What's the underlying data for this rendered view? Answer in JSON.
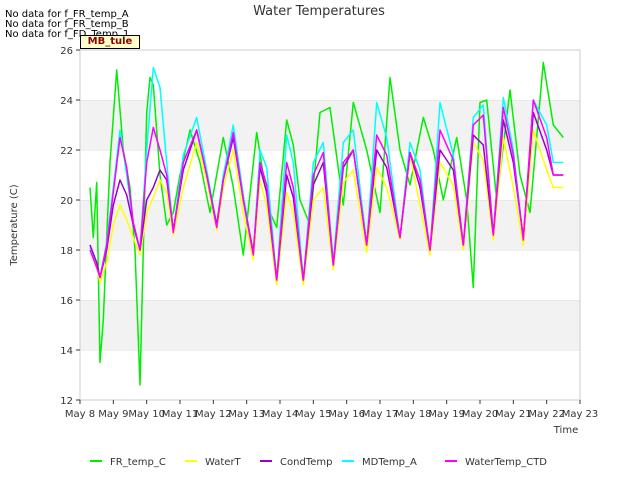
{
  "title": "Water Temperatures",
  "no_data_notes": [
    "No data for f_FR_temp_A",
    "No data for f_FR_temp_B",
    "No data for f_FD_Temp_1"
  ],
  "badge": "MB_tule",
  "chart_data": {
    "type": "line",
    "title": "Water Temperatures",
    "xlabel": "Time",
    "ylabel": "Temperature (C)",
    "xlim": [
      0,
      15
    ],
    "ylim": [
      12,
      26
    ],
    "x_tick_labels": [
      "May 8",
      "May 9",
      "May 10",
      "May 11",
      "May 12",
      "May 13",
      "May 14",
      "May 15",
      "May 16",
      "May 17",
      "May 18",
      "May 19",
      "May 20",
      "May 21",
      "May 22",
      "May 23"
    ],
    "y_ticks": [
      12,
      14,
      16,
      18,
      20,
      22,
      24,
      26
    ],
    "grid": "horizontal bands",
    "legend_position": "bottom",
    "series": [
      {
        "name": "FR_temp_C",
        "color": "#00ee00",
        "x": [
          0.3,
          0.4,
          0.5,
          0.6,
          0.7,
          0.8,
          0.9,
          1.0,
          1.1,
          1.3,
          1.5,
          1.65,
          1.8,
          1.9,
          2.0,
          2.1,
          2.2,
          2.4,
          2.6,
          2.8,
          3.0,
          3.3,
          3.6,
          3.9,
          4.3,
          4.6,
          4.9,
          5.3,
          5.5,
          5.7,
          5.9,
          6.2,
          6.4,
          6.6,
          6.9,
          7.2,
          7.5,
          7.9,
          8.2,
          8.6,
          9.0,
          9.3,
          9.6,
          9.9,
          10.3,
          10.6,
          10.9,
          11.3,
          11.6,
          11.8,
          12.0,
          12.2,
          12.5,
          12.9,
          13.2,
          13.5,
          13.9,
          14.2,
          14.5
        ],
        "y": [
          20.5,
          18.5,
          20.7,
          13.5,
          15.2,
          18.5,
          21.5,
          23.3,
          25.2,
          22.0,
          20.5,
          18.0,
          12.6,
          18.0,
          23.5,
          24.9,
          24.6,
          21.0,
          19.0,
          19.5,
          21.0,
          22.8,
          21.5,
          19.5,
          22.5,
          20.5,
          17.8,
          22.7,
          21.0,
          19.5,
          18.9,
          23.2,
          22.2,
          20.0,
          19.0,
          23.5,
          23.7,
          19.8,
          23.9,
          22.0,
          19.5,
          24.9,
          22.0,
          20.6,
          23.3,
          22.0,
          20.0,
          22.5,
          20.0,
          16.5,
          23.9,
          24.0,
          20.0,
          24.4,
          21.0,
          19.5,
          25.5,
          23.0,
          22.5
        ]
      },
      {
        "name": "WaterT",
        "color": "#ffff00",
        "x": [
          0.3,
          0.5,
          0.6,
          0.8,
          1.0,
          1.2,
          1.4,
          1.6,
          1.8,
          2.0,
          2.2,
          2.4,
          2.6,
          2.8,
          3.1,
          3.5,
          3.8,
          4.1,
          4.3,
          4.6,
          4.9,
          5.2,
          5.4,
          5.6,
          5.9,
          6.2,
          6.4,
          6.7,
          7.0,
          7.3,
          7.6,
          7.9,
          8.2,
          8.6,
          8.9,
          9.2,
          9.6,
          9.9,
          10.2,
          10.5,
          10.8,
          11.2,
          11.5,
          11.8,
          12.1,
          12.4,
          12.7,
          13.0,
          13.3,
          13.6,
          14.0,
          14.2,
          14.5
        ],
        "y": [
          18.0,
          17.3,
          16.7,
          17.5,
          19.0,
          19.8,
          19.2,
          18.5,
          17.8,
          19.5,
          20.1,
          20.8,
          20.3,
          18.6,
          20.5,
          22.3,
          20.8,
          18.8,
          20.5,
          22.0,
          19.5,
          17.6,
          20.8,
          19.8,
          16.6,
          20.3,
          19.5,
          16.6,
          20.0,
          20.5,
          17.2,
          20.7,
          21.2,
          17.9,
          21.3,
          20.5,
          18.4,
          21.8,
          19.8,
          17.8,
          21.5,
          20.6,
          18.0,
          22.3,
          21.6,
          18.4,
          22.5,
          20.5,
          18.2,
          22.8,
          21.2,
          20.5,
          20.5
        ]
      },
      {
        "name": "CondTemp",
        "color": "#9900cc",
        "x": [
          0.3,
          0.5,
          0.6,
          0.8,
          1.0,
          1.2,
          1.4,
          1.6,
          1.8,
          2.0,
          2.2,
          2.4,
          2.6,
          2.8,
          3.1,
          3.5,
          3.8,
          4.1,
          4.3,
          4.6,
          4.9,
          5.2,
          5.4,
          5.6,
          5.9,
          6.2,
          6.4,
          6.7,
          7.0,
          7.3,
          7.6,
          7.9,
          8.2,
          8.6,
          8.9,
          9.2,
          9.6,
          9.9,
          10.2,
          10.5,
          10.8,
          11.2,
          11.5,
          11.8,
          12.1,
          12.4,
          12.7,
          13.0,
          13.3,
          13.6,
          14.0,
          14.2,
          14.5
        ],
        "y": [
          18.2,
          17.5,
          16.9,
          18.0,
          19.8,
          20.8,
          20.2,
          19.0,
          18.0,
          20.0,
          20.5,
          21.2,
          20.8,
          18.8,
          21.2,
          22.8,
          21.0,
          19.0,
          20.8,
          22.5,
          20.0,
          17.9,
          21.3,
          20.3,
          16.8,
          21.0,
          20.1,
          16.8,
          20.6,
          21.5,
          17.4,
          21.3,
          22.0,
          18.2,
          22.0,
          21.3,
          18.5,
          21.9,
          20.5,
          18.0,
          22.0,
          21.2,
          18.2,
          22.6,
          22.2,
          18.6,
          23.2,
          21.5,
          18.5,
          23.5,
          22.0,
          21.0,
          21.0
        ]
      },
      {
        "name": "MDTemp_A",
        "color": "#00ffff",
        "x": [
          0.3,
          0.5,
          0.6,
          0.8,
          1.0,
          1.2,
          1.4,
          1.6,
          1.8,
          2.0,
          2.2,
          2.4,
          2.6,
          2.8,
          3.1,
          3.5,
          3.8,
          4.1,
          4.3,
          4.6,
          4.9,
          5.2,
          5.4,
          5.6,
          5.9,
          6.2,
          6.4,
          6.7,
          7.0,
          7.3,
          7.6,
          7.9,
          8.2,
          8.6,
          8.9,
          9.2,
          9.6,
          9.9,
          10.2,
          10.5,
          10.8,
          11.2,
          11.5,
          11.8,
          12.1,
          12.4,
          12.7,
          13.0,
          13.3,
          13.6,
          14.0,
          14.2,
          14.5
        ],
        "y": [
          18.1,
          17.4,
          16.9,
          18.3,
          20.5,
          22.8,
          21.0,
          19.0,
          18.0,
          22.0,
          25.3,
          24.5,
          21.5,
          18.7,
          21.8,
          23.3,
          21.2,
          19.0,
          21.0,
          23.0,
          20.2,
          17.8,
          22.0,
          21.3,
          16.8,
          22.6,
          21.5,
          16.8,
          21.5,
          22.3,
          17.5,
          22.3,
          22.8,
          18.2,
          23.9,
          22.5,
          18.5,
          22.3,
          21.2,
          17.9,
          23.9,
          21.8,
          18.2,
          23.3,
          23.8,
          18.6,
          24.1,
          22.0,
          18.4,
          24.0,
          23.0,
          21.5,
          21.5
        ]
      },
      {
        "name": "WaterTemp_CTD",
        "color": "#ff00ff",
        "x": [
          0.3,
          0.5,
          0.6,
          0.8,
          1.0,
          1.2,
          1.4,
          1.6,
          1.8,
          2.0,
          2.2,
          2.4,
          2.6,
          2.8,
          3.1,
          3.5,
          3.8,
          4.1,
          4.3,
          4.6,
          4.9,
          5.2,
          5.4,
          5.6,
          5.9,
          6.2,
          6.4,
          6.7,
          7.0,
          7.3,
          7.6,
          7.9,
          8.2,
          8.6,
          8.9,
          9.2,
          9.6,
          9.9,
          10.2,
          10.5,
          10.8,
          11.2,
          11.5,
          11.8,
          12.1,
          12.4,
          12.7,
          13.0,
          13.3,
          13.6,
          14.0,
          14.2,
          14.5
        ],
        "y": [
          18.0,
          17.3,
          16.9,
          18.2,
          20.3,
          22.5,
          21.3,
          19.1,
          18.0,
          21.5,
          22.9,
          22.0,
          21.0,
          18.7,
          21.5,
          22.8,
          21.0,
          18.9,
          20.8,
          22.7,
          20.0,
          17.8,
          21.5,
          20.6,
          16.8,
          21.5,
          20.5,
          16.8,
          21.0,
          21.9,
          17.4,
          21.5,
          22.0,
          18.2,
          22.6,
          21.8,
          18.5,
          21.9,
          20.8,
          18.0,
          22.8,
          21.6,
          18.2,
          23.0,
          23.4,
          18.6,
          23.7,
          21.8,
          18.4,
          24.0,
          22.5,
          21.0,
          21.0
        ]
      }
    ]
  }
}
